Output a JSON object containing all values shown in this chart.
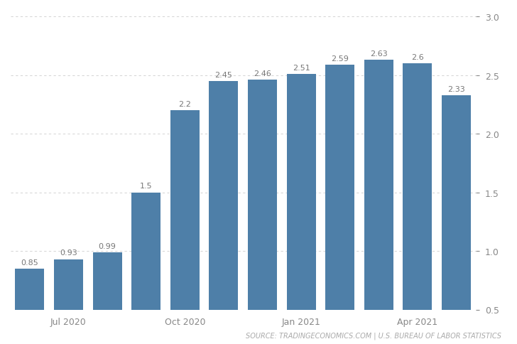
{
  "values": [
    0.85,
    0.93,
    0.99,
    1.5,
    2.2,
    2.45,
    2.46,
    2.51,
    2.59,
    2.63,
    2.6,
    2.33
  ],
  "bar_color": "#4e7fa8",
  "ylim": [
    0.5,
    3.0
  ],
  "yticks": [
    0.5,
    1.0,
    1.5,
    2.0,
    2.5,
    3.0
  ],
  "xtick_labels": [
    "Jul 2020",
    "Oct 2020",
    "Jan 2021",
    "Apr 2021"
  ],
  "xtick_positions": [
    1,
    4,
    7,
    10
  ],
  "source_text": "SOURCE: TRADINGECONOMICS.COM | U.S. BUREAU OF LABOR STATISTICS",
  "background_color": "#ffffff",
  "label_fontsize": 8.0,
  "tick_fontsize": 9.0,
  "source_fontsize": 7.0
}
